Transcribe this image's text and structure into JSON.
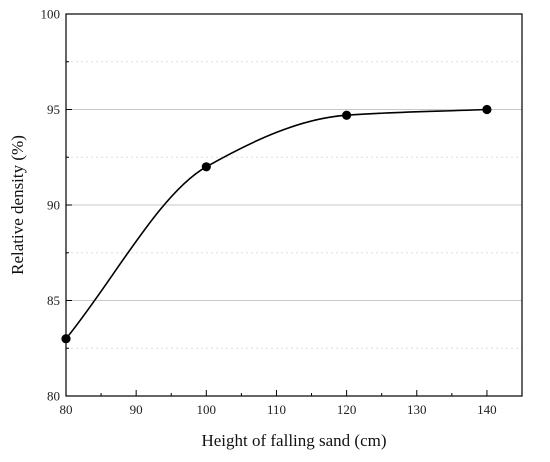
{
  "chart_data": {
    "type": "line",
    "xlabel": "Height of falling sand (cm)",
    "ylabel": "Relative density (%)",
    "xlim": [
      80,
      145
    ],
    "ylim": [
      80,
      100
    ],
    "xticks": [
      80,
      90,
      100,
      110,
      120,
      130,
      140
    ],
    "yticks": [
      80,
      85,
      90,
      95,
      100
    ],
    "grid": "horizontal",
    "series": [
      {
        "x": [
          80,
          100,
          120,
          140
        ],
        "values": [
          83,
          92,
          94.7,
          95
        ],
        "color": "#000000",
        "marker": "circle",
        "smooth": true
      }
    ]
  }
}
